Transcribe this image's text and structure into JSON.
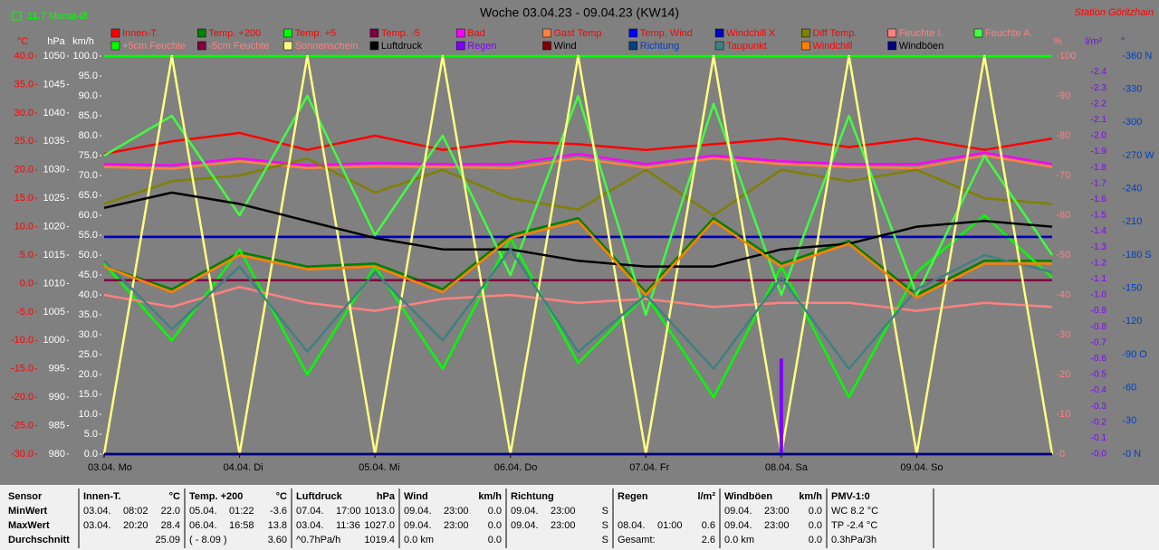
{
  "chart_data": {
    "type": "line",
    "title": "Woche 03.04.23 - 09.04.23 (KW14)",
    "station": "Station Göritzhain",
    "month_note": "11.7 Monat-Ø",
    "x": [
      0,
      12,
      24,
      36,
      48,
      60,
      72,
      84,
      96,
      108,
      120,
      132,
      144,
      156,
      168
    ],
    "xlim": [
      0,
      168
    ],
    "xticks": [
      {
        "value": 0,
        "label": "03.04.  Mo"
      },
      {
        "value": 24,
        "label": "04.04.  Di"
      },
      {
        "value": 48,
        "label": "05.04.  Mi"
      },
      {
        "value": 72,
        "label": "06.04.  Do"
      },
      {
        "value": 96,
        "label": "07.04.  Fr"
      },
      {
        "value": 120,
        "label": "08.04.  Sa"
      },
      {
        "value": 144,
        "label": "09.04.  So"
      }
    ],
    "axes": {
      "temp": {
        "unit": "°C",
        "color": "#ff0000",
        "lim": [
          -30,
          40
        ],
        "ticks": [
          {
            "value": -30,
            "label": "-30.0"
          },
          {
            "value": -25,
            "label": "-25.0"
          },
          {
            "value": -20,
            "label": "-20.0"
          },
          {
            "value": -15,
            "label": "-15.0"
          },
          {
            "value": -10,
            "label": "-10.0"
          },
          {
            "value": -5,
            "label": "-5.0"
          },
          {
            "value": 0,
            "label": "0.0"
          },
          {
            "value": 5,
            "label": "5.0"
          },
          {
            "value": 10,
            "label": "10.0"
          },
          {
            "value": 15,
            "label": "15.0"
          },
          {
            "value": 20,
            "label": "20.0"
          },
          {
            "value": 25,
            "label": "25.0"
          },
          {
            "value": 30,
            "label": "30.0"
          },
          {
            "value": 35,
            "label": "35.0"
          },
          {
            "value": 40,
            "label": "40.0"
          }
        ]
      },
      "hpa": {
        "unit": "hPa",
        "color": "#ffffff",
        "lim": [
          980,
          1050
        ],
        "ticks": [
          980,
          985,
          990,
          995,
          1000,
          1005,
          1010,
          1015,
          1020,
          1025,
          1030,
          1035,
          1040,
          1045,
          1050
        ]
      },
      "kmh": {
        "unit": "km/h",
        "color": "#ffffff",
        "lim": [
          0,
          100
        ],
        "ticks": [
          {
            "value": 0,
            "label": "0.0"
          },
          {
            "value": 5,
            "label": "5.0"
          },
          {
            "value": 10,
            "label": "10.0"
          },
          {
            "value": 15,
            "label": "15.0"
          },
          {
            "value": 20,
            "label": "20.0"
          },
          {
            "value": 25,
            "label": "25.0"
          },
          {
            "value": 30,
            "label": "30.0"
          },
          {
            "value": 35,
            "label": "35.0"
          },
          {
            "value": 40,
            "label": "40.0"
          },
          {
            "value": 45,
            "label": "45.0"
          },
          {
            "value": 50,
            "label": "50.0"
          },
          {
            "value": 55,
            "label": "55.0"
          },
          {
            "value": 60,
            "label": "60.0"
          },
          {
            "value": 65,
            "label": "65.0"
          },
          {
            "value": 70,
            "label": "70.0"
          },
          {
            "value": 75,
            "label": "75.0"
          },
          {
            "value": 80,
            "label": "80.0"
          },
          {
            "value": 85,
            "label": "85.0"
          },
          {
            "value": 90,
            "label": "90.0"
          },
          {
            "value": 95,
            "label": "95.0"
          },
          {
            "value": 100,
            "label": "100.0"
          }
        ]
      },
      "pct": {
        "unit": "%",
        "color": "#ff8080",
        "lim": [
          0,
          100
        ],
        "ticks": [
          0,
          10,
          20,
          30,
          40,
          50,
          60,
          70,
          80,
          90,
          100
        ]
      },
      "rain": {
        "unit": "l/m²",
        "color": "#8000ff",
        "lim": [
          0,
          2.5
        ],
        "ticks": [
          {
            "value": 0,
            "label": "0.0"
          },
          0.1,
          0.2,
          0.3,
          0.4,
          0.5,
          0.6,
          0.7,
          0.8,
          0.9,
          {
            "value": 1,
            "label": "1.0"
          },
          1.1,
          1.2,
          1.3,
          1.4,
          1.5,
          1.6,
          1.7,
          1.8,
          1.9,
          {
            "value": 2,
            "label": "2.0"
          },
          2.1,
          2.2,
          2.3,
          2.4
        ]
      },
      "dir": {
        "unit": "°",
        "color": "#0040c0",
        "lim": [
          0,
          360
        ],
        "ticks": [
          {
            "value": 0,
            "label": "0 N"
          },
          30,
          60,
          {
            "value": 90,
            "label": "90 O"
          },
          120,
          150,
          {
            "value": 180,
            "label": "180 S"
          },
          210,
          240,
          {
            "value": 270,
            "label": "270 W"
          },
          300,
          330,
          {
            "value": 360,
            "label": "360 N"
          }
        ]
      }
    },
    "series": [
      {
        "name": "Innen-T.",
        "color": "#ff0000",
        "axis": "temp",
        "values": [
          22.8,
          25,
          26.5,
          23.5,
          26,
          23.5,
          25,
          24.5,
          23.5,
          24.5,
          25.5,
          24,
          25.5,
          23.5,
          25.5
        ]
      },
      {
        "name": "Temp. +200",
        "color": "#008000",
        "axis": "temp",
        "values": [
          3,
          -1,
          5.5,
          3,
          3.5,
          -1,
          8.5,
          11.5,
          -1.5,
          11.5,
          3.5,
          7.5,
          -2,
          4,
          4
        ]
      },
      {
        "name": "Temp. +5",
        "color": "#00ff00",
        "axis": "temp",
        "values": [
          3.5,
          -10,
          6,
          -16,
          3,
          -15,
          8,
          -14,
          -2,
          -20,
          3,
          -20,
          2,
          12,
          1
        ]
      },
      {
        "name": "Temp. -5",
        "color": "#800040",
        "axis": "temp",
        "values": [
          0.6,
          0.6,
          0.6,
          0.6,
          0.6,
          0.6,
          0.6,
          0.6,
          0.6,
          0.6,
          0.6,
          0.6,
          0.6,
          0.6,
          0.6
        ]
      },
      {
        "name": "Bad",
        "color": "#ff00ff",
        "axis": "temp",
        "values": [
          21,
          20.8,
          22,
          20.8,
          21.2,
          21,
          21,
          22.8,
          21,
          22.5,
          21.5,
          21,
          21,
          23,
          21
        ]
      },
      {
        "name": "Gast Temp",
        "color": "#ff8040",
        "axis": "temp",
        "values": [
          20.5,
          20.2,
          21.5,
          20.3,
          20.6,
          20.5,
          20.3,
          22,
          20.4,
          22,
          21,
          20.5,
          20.3,
          22.5,
          20.5
        ]
      },
      {
        "name": "Temp. Wind",
        "color": "#0000ff",
        "axis": "temp",
        "values": [
          8.2,
          8.2,
          8.2,
          8.2,
          8.2,
          8.2,
          8.2,
          8.2,
          8.2,
          8.2,
          8.2,
          8.2,
          8.2,
          8.2,
          8.2
        ]
      },
      {
        "name": "Windchill X",
        "color": "#0000c0",
        "axis": "temp",
        "values": [
          8.2,
          8.2,
          8.2,
          8.2,
          8.2,
          8.2,
          8.2,
          8.2,
          8.2,
          8.2,
          8.2,
          8.2,
          8.2,
          8.2,
          8.2
        ]
      },
      {
        "name": "Diff Temp.",
        "color": "#808000",
        "axis": "temp",
        "values": [
          14,
          18,
          19,
          22,
          16,
          20,
          15,
          13,
          20,
          12,
          20,
          18,
          20,
          15,
          14
        ]
      },
      {
        "name": "Feuchte I.",
        "color": "#ff8080",
        "axis": "pct",
        "values": [
          40,
          37,
          42,
          38,
          36,
          39,
          40,
          38,
          39,
          37,
          38,
          38,
          36,
          38,
          37
        ]
      },
      {
        "name": "Feuchte A.",
        "color": "#40ff40",
        "axis": "pct",
        "values": [
          75,
          85,
          60,
          90,
          55,
          80,
          45,
          90,
          35,
          88,
          40,
          85,
          40,
          75,
          50
        ]
      },
      {
        "name": "+5cm Feuchte",
        "color": "#00ff00",
        "axis": "pct",
        "values": [
          100,
          100,
          100,
          100,
          100,
          100,
          100,
          100,
          100,
          100,
          100,
          100,
          100,
          100,
          100
        ]
      },
      {
        "name": "-5cm Feuchte",
        "color": "#800040",
        "axis": "pct",
        "values": [
          0,
          0,
          0,
          0,
          0,
          0,
          0,
          0,
          0,
          0,
          0,
          0,
          0,
          0,
          0
        ]
      },
      {
        "name": "Sonnenschein",
        "color": "#ffff80",
        "axis": "pct",
        "values": [
          0,
          100,
          0,
          100,
          0,
          100,
          0,
          100,
          0,
          100,
          0,
          100,
          0,
          100,
          0
        ]
      },
      {
        "name": "Luftdruck",
        "color": "#000000",
        "axis": "hpa",
        "values": [
          1023.3,
          1026,
          1024,
          1021,
          1018,
          1016,
          1016,
          1014,
          1013,
          1013,
          1016,
          1017,
          1020,
          1021,
          1020
        ]
      },
      {
        "name": "Regen",
        "color": "#8000ff",
        "axis": "rain",
        "bars": true,
        "values": [
          0,
          0,
          0,
          0,
          0,
          0,
          0,
          0,
          0,
          0,
          0.6,
          0,
          0,
          0,
          0
        ]
      },
      {
        "name": "Wind",
        "color": "#800000",
        "axis": "kmh",
        "values": [
          0,
          0,
          0,
          0,
          0,
          0,
          0,
          0,
          0,
          0,
          0,
          0,
          0,
          0,
          0
        ]
      },
      {
        "name": "Richtung",
        "color": "#004080",
        "axis": "dir",
        "values": [
          0,
          0,
          0,
          0,
          0,
          0,
          0,
          0,
          0,
          0,
          0,
          0,
          0,
          0,
          0
        ]
      },
      {
        "name": "Taupunkt",
        "color": "#408080",
        "axis": "temp",
        "values": [
          4,
          -8,
          3,
          -12,
          2,
          -10,
          6,
          -12,
          -2,
          -15,
          1,
          -15,
          -1,
          5,
          2
        ]
      },
      {
        "name": "Windchill",
        "color": "#ff8000",
        "axis": "temp",
        "values": [
          3,
          -1.5,
          5,
          2.5,
          3,
          -1.5,
          8,
          11,
          -2,
          11,
          3,
          7,
          -2.5,
          3.5,
          3.5
        ]
      },
      {
        "name": "Windböen",
        "color": "#000080",
        "axis": "kmh",
        "values": [
          0,
          0,
          0,
          0,
          0,
          0,
          0,
          0,
          0,
          0,
          0,
          0,
          0,
          0,
          0
        ]
      }
    ]
  },
  "stats": {
    "row_labels": [
      "Sensor",
      "MinWert",
      "MaxWert",
      "Durchschnitt"
    ],
    "columns": [
      {
        "title": "Innen-T.",
        "unit": "°C",
        "rows": [
          [
            "03.04.",
            "08:02",
            "22.0"
          ],
          [
            "03.04.",
            "20:20",
            "28.4"
          ],
          [
            "25.09"
          ]
        ]
      },
      {
        "title": "Temp. +200",
        "unit": "°C",
        "rows": [
          [
            "05.04.",
            "01:22",
            "-3.6"
          ],
          [
            "06.04.",
            "16:58",
            "13.8"
          ],
          [
            "( - 8.09 )",
            "3.60"
          ]
        ]
      },
      {
        "title": "Luftdruck",
        "unit": "hPa",
        "rows": [
          [
            "07.04.",
            "17:00",
            "1013.0"
          ],
          [
            "03.04.",
            "11:36",
            "1027.0"
          ],
          [
            "^0.7hPa/h",
            "1019.4"
          ]
        ]
      },
      {
        "title": "Wind",
        "unit": "km/h",
        "rows": [
          [
            "09.04.",
            "23:00",
            "0.0"
          ],
          [
            "09.04.",
            "23:00",
            "0.0"
          ],
          [
            "0.0 km",
            "0.0"
          ]
        ]
      },
      {
        "title": "Richtung",
        "rows": [
          [
            "09.04.",
            "23:00",
            "S"
          ],
          [
            "09.04.",
            "23:00",
            "S"
          ],
          [
            "S"
          ]
        ]
      },
      {
        "title": "Regen",
        "unit": "l/m²",
        "rows": [
          [],
          [
            "08.04.",
            "01:00",
            "0.6"
          ],
          [
            "Gesamt:",
            "2.6"
          ]
        ]
      },
      {
        "title": "Windböen",
        "unit": "km/h",
        "rows": [
          [
            "09.04.",
            "23:00",
            "0.0"
          ],
          [
            "09.04.",
            "23:00",
            "0.0"
          ],
          [
            "0.0 km",
            "0.0"
          ]
        ]
      },
      {
        "title": "PMV-1:0",
        "rows": [
          [
            "WC 8.2 °C"
          ],
          [
            "TP -2.4 °C"
          ],
          [
            "0.3hPa/3h"
          ]
        ]
      }
    ]
  }
}
